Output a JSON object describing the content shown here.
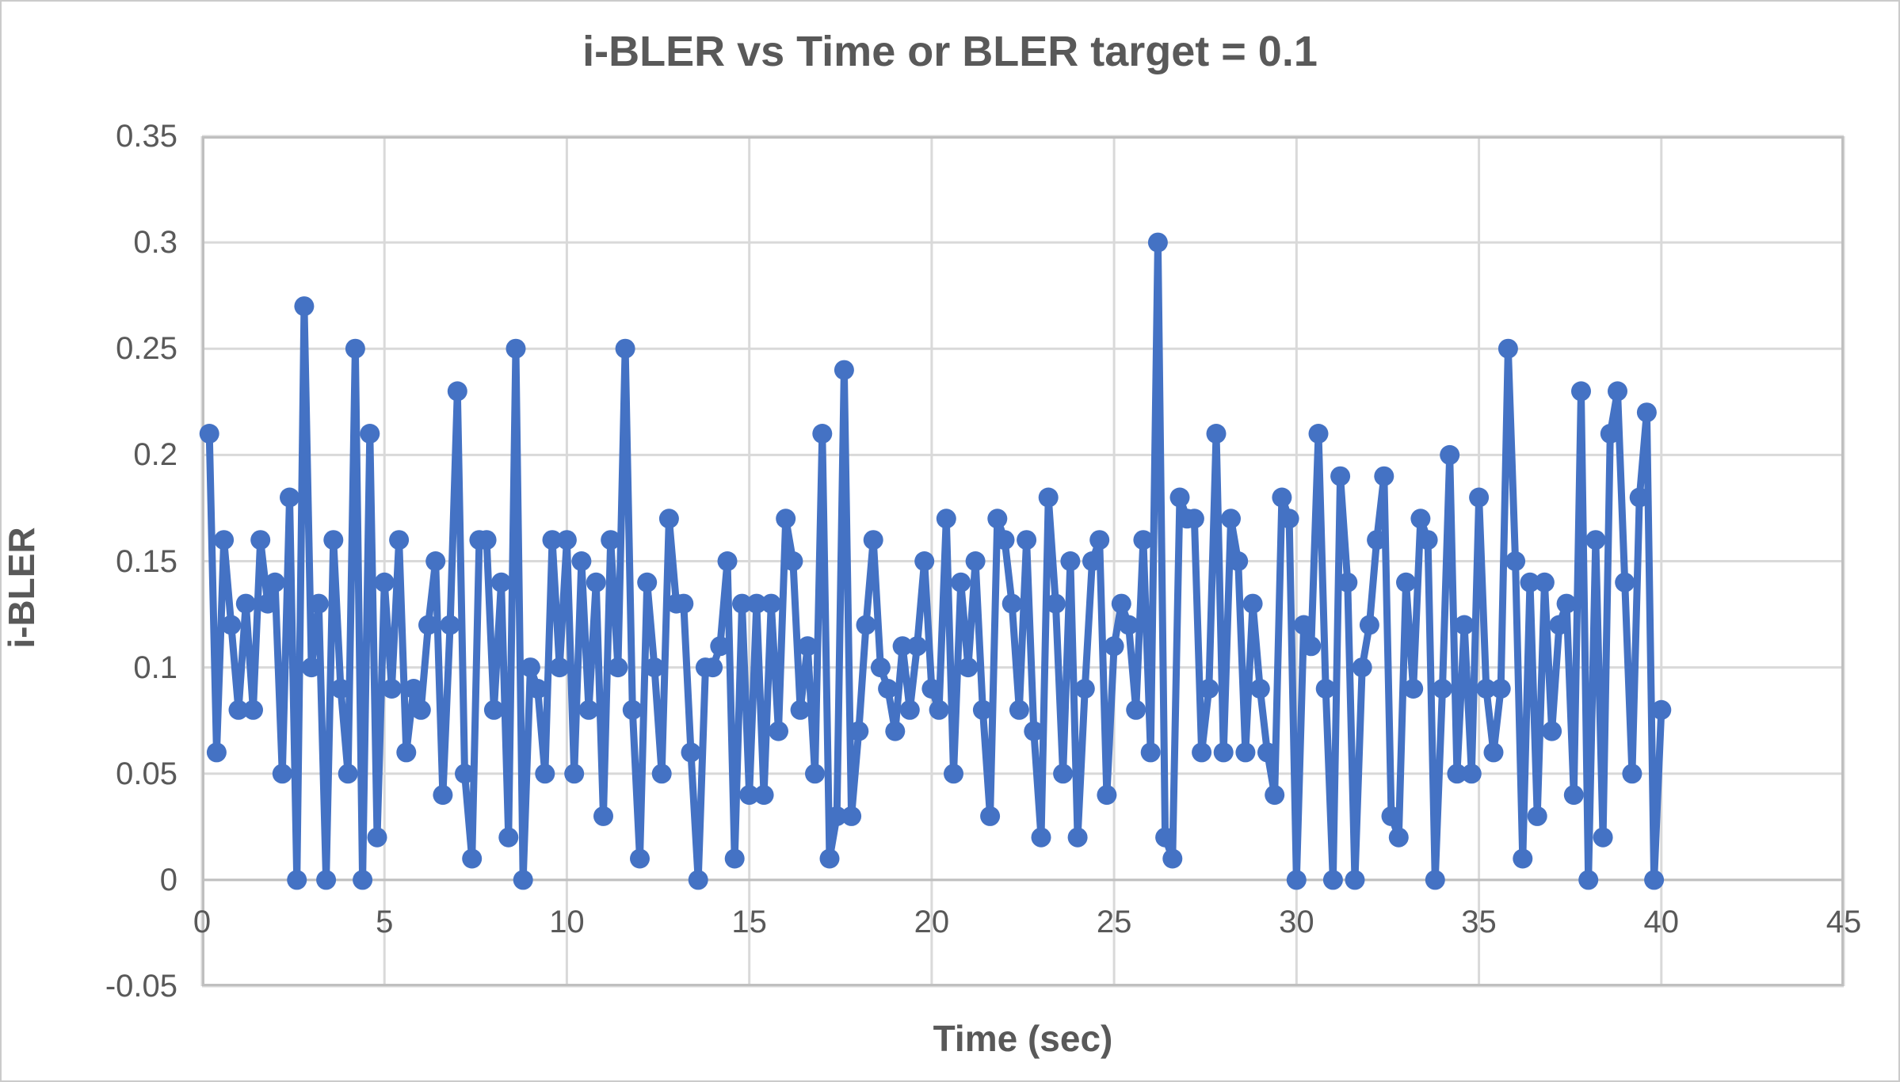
{
  "page": {
    "background": "#ffffff",
    "border_color": "#cbcbcb"
  },
  "colors": {
    "series": "#4472C4",
    "gridline": "#D9D9D9",
    "axis_frame": "#BFBFBF",
    "text": "#595959"
  },
  "chart_data": {
    "type": "line",
    "title": "i-BLER vs Time or BLER target = 0.1",
    "xlabel": "Time (sec)",
    "ylabel": "i-BLER",
    "xlim": [
      0,
      45
    ],
    "ylim": [
      -0.05,
      0.35
    ],
    "x_tick_labels": [
      "0",
      "5",
      "10",
      "15",
      "20",
      "25",
      "30",
      "35",
      "40",
      "45"
    ],
    "x_tick_values": [
      0,
      5,
      10,
      15,
      20,
      25,
      30,
      35,
      40,
      45
    ],
    "y_tick_labels": [
      "0.35",
      "0.3",
      "0.25",
      "0.2",
      "0.15",
      "0.1",
      "0.05",
      "0",
      "-0.05"
    ],
    "y_tick_values": [
      0.35,
      0.3,
      0.25,
      0.2,
      0.15,
      0.1,
      0.05,
      0,
      -0.05
    ],
    "grid": true,
    "legend": "none",
    "marker": "circle",
    "series": [
      {
        "name": "i-BLER",
        "color": "#4472C4",
        "x": [
          0.2,
          0.4,
          0.6,
          0.8,
          1.0,
          1.2,
          1.4,
          1.6,
          1.8,
          2.0,
          2.2,
          2.4,
          2.6,
          2.8,
          3.0,
          3.2,
          3.4,
          3.6,
          3.8,
          4.0,
          4.2,
          4.4,
          4.6,
          4.8,
          5.0,
          5.2,
          5.4,
          5.6,
          5.8,
          6.0,
          6.2,
          6.4,
          6.6,
          6.8,
          7.0,
          7.2,
          7.4,
          7.6,
          7.8,
          8.0,
          8.2,
          8.4,
          8.6,
          8.8,
          9.0,
          9.2,
          9.4,
          9.6,
          9.8,
          10.0,
          10.2,
          10.4,
          10.6,
          10.8,
          11.0,
          11.2,
          11.4,
          11.6,
          11.8,
          12.0,
          12.2,
          12.4,
          12.6,
          12.8,
          13.0,
          13.2,
          13.4,
          13.6,
          13.8,
          14.0,
          14.2,
          14.4,
          14.6,
          14.8,
          15.0,
          15.2,
          15.4,
          15.6,
          15.8,
          16.0,
          16.2,
          16.4,
          16.6,
          16.8,
          17.0,
          17.2,
          17.4,
          17.6,
          17.8,
          18.0,
          18.2,
          18.4,
          18.6,
          18.8,
          19.0,
          19.2,
          19.4,
          19.6,
          19.8,
          20.0,
          20.2,
          20.4,
          20.6,
          20.8,
          21.0,
          21.2,
          21.4,
          21.6,
          21.8,
          22.0,
          22.2,
          22.4,
          22.6,
          22.8,
          23.0,
          23.2,
          23.4,
          23.6,
          23.8,
          24.0,
          24.2,
          24.4,
          24.6,
          24.8,
          25.0,
          25.2,
          25.4,
          25.6,
          25.8,
          26.0,
          26.2,
          26.4,
          26.6,
          26.8,
          27.0,
          27.2,
          27.4,
          27.6,
          27.8,
          28.0,
          28.2,
          28.4,
          28.6,
          28.8,
          29.0,
          29.2,
          29.4,
          29.6,
          29.8,
          30.0,
          30.2,
          30.4,
          30.6,
          30.8,
          31.0,
          31.2,
          31.4,
          31.6,
          31.8,
          32.0,
          32.2,
          32.4,
          32.6,
          32.8,
          33.0,
          33.2,
          33.4,
          33.6,
          33.8,
          34.0,
          34.2,
          34.4,
          34.6,
          34.8,
          35.0,
          35.2,
          35.4,
          35.6,
          35.8,
          36.0,
          36.2,
          36.4,
          36.6,
          36.8,
          37.0,
          37.2,
          37.4,
          37.6,
          37.8,
          38.0,
          38.2,
          38.4,
          38.6,
          38.8,
          39.0,
          39.2,
          39.4,
          39.6,
          39.8,
          40.0
        ],
        "y": [
          0.21,
          0.06,
          0.16,
          0.12,
          0.08,
          0.13,
          0.08,
          0.16,
          0.13,
          0.14,
          0.05,
          0.18,
          0.0,
          0.27,
          0.1,
          0.13,
          0.0,
          0.16,
          0.09,
          0.05,
          0.25,
          0.0,
          0.21,
          0.02,
          0.14,
          0.09,
          0.16,
          0.06,
          0.09,
          0.08,
          0.12,
          0.15,
          0.04,
          0.12,
          0.23,
          0.05,
          0.01,
          0.16,
          0.16,
          0.08,
          0.14,
          0.02,
          0.25,
          0.0,
          0.1,
          0.09,
          0.05,
          0.16,
          0.1,
          0.16,
          0.05,
          0.15,
          0.08,
          0.14,
          0.03,
          0.16,
          0.1,
          0.25,
          0.08,
          0.01,
          0.14,
          0.1,
          0.05,
          0.17,
          0.13,
          0.13,
          0.06,
          0.0,
          0.1,
          0.1,
          0.11,
          0.15,
          0.01,
          0.13,
          0.04,
          0.13,
          0.04,
          0.13,
          0.07,
          0.17,
          0.15,
          0.08,
          0.11,
          0.05,
          0.21,
          0.01,
          0.03,
          0.24,
          0.03,
          0.07,
          0.12,
          0.16,
          0.1,
          0.09,
          0.07,
          0.11,
          0.08,
          0.11,
          0.15,
          0.09,
          0.08,
          0.17,
          0.05,
          0.14,
          0.1,
          0.15,
          0.08,
          0.03,
          0.17,
          0.16,
          0.13,
          0.08,
          0.16,
          0.07,
          0.02,
          0.18,
          0.13,
          0.05,
          0.15,
          0.02,
          0.09,
          0.15,
          0.16,
          0.04,
          0.11,
          0.13,
          0.12,
          0.08,
          0.16,
          0.06,
          0.3,
          0.02,
          0.01,
          0.18,
          0.17,
          0.17,
          0.06,
          0.09,
          0.21,
          0.06,
          0.17,
          0.15,
          0.06,
          0.13,
          0.09,
          0.06,
          0.04,
          0.18,
          0.17,
          0.0,
          0.12,
          0.11,
          0.21,
          0.09,
          0.0,
          0.19,
          0.14,
          0.0,
          0.1,
          0.12,
          0.16,
          0.19,
          0.03,
          0.02,
          0.14,
          0.09,
          0.17,
          0.16,
          0.0,
          0.09,
          0.2,
          0.05,
          0.12,
          0.05,
          0.18,
          0.09,
          0.06,
          0.09,
          0.25,
          0.15,
          0.01,
          0.14,
          0.03,
          0.14,
          0.07,
          0.12,
          0.13,
          0.04,
          0.23,
          0.0,
          0.16,
          0.02,
          0.21,
          0.23,
          0.14,
          0.05,
          0.18,
          0.22,
          0.0,
          0.08
        ]
      }
    ]
  }
}
